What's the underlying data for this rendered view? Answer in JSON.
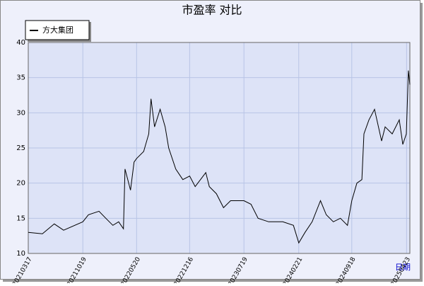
{
  "chart_data": {
    "type": "line",
    "title": "市盈率  对比",
    "x_label": "日期",
    "x": [
      "2021-03-17",
      "2021-05-12",
      "2021-06-28",
      "2021-08-04",
      "2021-10-19",
      "2021-11-10",
      "2021-12-22",
      "2022-01-18",
      "2022-02-15",
      "2022-03-10",
      "2022-03-29",
      "2022-04-04",
      "2022-04-26",
      "2022-05-10",
      "2022-05-20",
      "2022-06-17",
      "2022-07-07",
      "2022-07-16",
      "2022-07-30",
      "2022-08-21",
      "2022-09-10",
      "2022-09-24",
      "2022-10-22",
      "2022-11-19",
      "2022-12-16",
      "2023-01-07",
      "2023-02-18",
      "2023-03-04",
      "2023-04-01",
      "2023-04-29",
      "2023-05-27",
      "2023-07-19",
      "2023-08-16",
      "2023-09-13",
      "2023-10-25",
      "2023-12-20",
      "2024-01-31",
      "2024-02-21",
      "2024-03-17",
      "2024-04-14",
      "2024-05-17",
      "2024-06-09",
      "2024-07-07",
      "2024-08-04",
      "2024-09-01",
      "2024-09-18",
      "2024-10-08",
      "2024-10-28",
      "2024-11-05",
      "2024-11-25",
      "2024-12-17",
      "2025-01-14",
      "2025-01-28",
      "2025-02-25",
      "2025-03-25",
      "2025-04-08",
      "2025-04-22",
      "2025-04-30",
      "2025-05-06"
    ],
    "series": [
      {
        "name": "方大集团",
        "color": "#000000",
        "values": [
          13,
          12.8,
          14.2,
          13.3,
          14.5,
          15.5,
          16,
          15,
          14,
          14.5,
          13.5,
          22,
          19,
          23,
          23.5,
          24.5,
          27,
          32,
          28,
          30.5,
          28,
          25,
          22,
          20.5,
          21,
          19.5,
          21.5,
          19.5,
          18.5,
          16.5,
          17.5,
          17.5,
          17,
          15,
          14.5,
          14.5,
          14,
          11.5,
          13,
          14.5,
          17.5,
          15.5,
          14.5,
          15,
          14,
          17.5,
          20,
          20.5,
          27,
          29,
          30.5,
          26,
          28,
          27,
          29,
          25.5,
          27,
          36,
          34
        ]
      }
    ],
    "xlim": [
      "2021-03-17",
      "2025-05-06"
    ],
    "xticks": [
      {
        "value": "2021-03-17",
        "label": "20210317"
      },
      {
        "value": "2021-10-19",
        "label": "20211019"
      },
      {
        "value": "2022-05-20",
        "label": "20220520"
      },
      {
        "value": "2022-12-16",
        "label": "20221216"
      },
      {
        "value": "2023-07-19",
        "label": "20230719"
      },
      {
        "value": "2024-02-21",
        "label": "20240221"
      },
      {
        "value": "2024-09-18",
        "label": "20240918"
      },
      {
        "value": "2025-04-23",
        "label": "20250423"
      }
    ],
    "ylim": [
      10,
      40
    ],
    "yticks": [
      10,
      15,
      20,
      25,
      30,
      35,
      40
    ],
    "grid": true
  }
}
